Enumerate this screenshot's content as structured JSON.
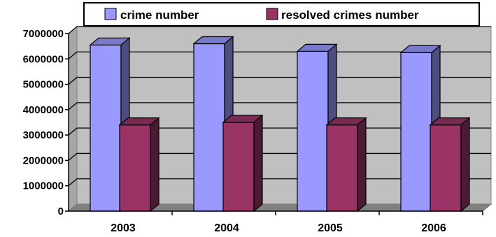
{
  "chart_data": {
    "type": "bar",
    "style": "3d-clustered-column",
    "categories": [
      "2003",
      "2004",
      "2005",
      "2006"
    ],
    "series": [
      {
        "name": "crime number",
        "values": [
          6550000,
          6600000,
          6300000,
          6250000
        ],
        "color": "#9999ff"
      },
      {
        "name": "resolved crimes number",
        "values": [
          3400000,
          3500000,
          3400000,
          3400000
        ],
        "color": "#993366"
      }
    ],
    "y_ticks": [
      "0",
      "1000000",
      "2000000",
      "3000000",
      "4000000",
      "5000000",
      "6000000",
      "7000000"
    ],
    "ylim": [
      0,
      7000000
    ],
    "grid": true,
    "legend_position": "top",
    "wall_color": "#c0c0c0",
    "floor_color": "#808080"
  }
}
